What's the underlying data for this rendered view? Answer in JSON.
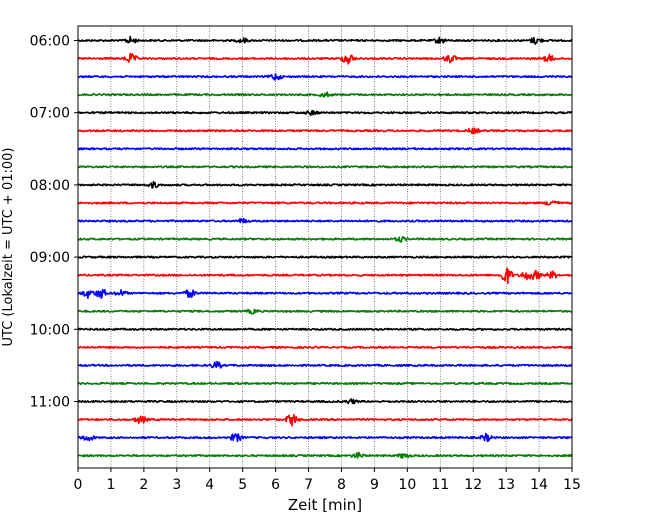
{
  "chart_data": {
    "type": "line",
    "title": "",
    "xlabel": "Zeit  [min]",
    "ylabel": "UTC (Lokalzeit = UTC + 01:00)",
    "xlim": [
      0,
      15
    ],
    "x_ticks": [
      "0",
      "1",
      "2",
      "3",
      "4",
      "5",
      "6",
      "7",
      "8",
      "9",
      "10",
      "11",
      "12",
      "13",
      "14",
      "15"
    ],
    "y_tick_labels": [
      "06:00",
      "07:00",
      "08:00",
      "09:00",
      "10:00",
      "11:00"
    ],
    "y_tick_rows": [
      0,
      4,
      8,
      12,
      16,
      20
    ],
    "grid_x": true,
    "series_colors": [
      "#000000",
      "#ff0000",
      "#0000ff",
      "#008000"
    ],
    "traces": [
      {
        "start": "06:00",
        "events": [
          [
            1.6,
            0.5
          ],
          [
            5.0,
            0.35
          ],
          [
            11.0,
            0.45
          ],
          [
            13.9,
            0.5
          ]
        ]
      },
      {
        "start": "06:15",
        "events": [
          [
            1.6,
            0.7
          ],
          [
            8.2,
            0.9
          ],
          [
            11.3,
            0.6
          ],
          [
            14.3,
            0.5
          ]
        ]
      },
      {
        "start": "06:30",
        "events": [
          [
            6.0,
            0.5
          ]
        ]
      },
      {
        "start": "06:45",
        "events": [
          [
            7.5,
            0.35
          ]
        ]
      },
      {
        "start": "07:00",
        "events": [
          [
            7.1,
            0.3
          ]
        ]
      },
      {
        "start": "07:15",
        "events": [
          [
            12.0,
            0.4
          ]
        ]
      },
      {
        "start": "07:30",
        "events": []
      },
      {
        "start": "07:45",
        "events": []
      },
      {
        "start": "08:00",
        "events": [
          [
            2.3,
            0.4
          ]
        ]
      },
      {
        "start": "08:15",
        "events": [
          [
            14.4,
            0.5
          ]
        ]
      },
      {
        "start": "08:30",
        "events": [
          [
            5.0,
            0.3
          ]
        ]
      },
      {
        "start": "08:45",
        "events": [
          [
            9.8,
            0.35
          ]
        ]
      },
      {
        "start": "09:00",
        "events": []
      },
      {
        "start": "09:15",
        "events": [
          [
            13.0,
            1.3
          ],
          [
            13.6,
            0.6
          ],
          [
            13.9,
            0.6
          ],
          [
            14.4,
            0.5
          ]
        ]
      },
      {
        "start": "09:30",
        "events": [
          [
            0.3,
            0.6
          ],
          [
            0.7,
            0.7
          ],
          [
            1.3,
            0.4
          ],
          [
            3.4,
            0.6
          ]
        ]
      },
      {
        "start": "09:45",
        "events": [
          [
            5.3,
            0.3
          ]
        ]
      },
      {
        "start": "10:00",
        "events": []
      },
      {
        "start": "10:15",
        "events": []
      },
      {
        "start": "10:30",
        "events": [
          [
            4.2,
            0.5
          ]
        ]
      },
      {
        "start": "10:45",
        "events": []
      },
      {
        "start": "11:00",
        "events": [
          [
            8.3,
            0.3
          ]
        ]
      },
      {
        "start": "11:15",
        "events": [
          [
            1.9,
            0.6
          ],
          [
            6.5,
            0.9
          ]
        ]
      },
      {
        "start": "11:30",
        "events": [
          [
            0.3,
            0.5
          ],
          [
            4.8,
            0.6
          ],
          [
            12.4,
            0.5
          ]
        ]
      },
      {
        "start": "11:45",
        "events": [
          [
            8.5,
            0.4
          ],
          [
            9.9,
            0.35
          ]
        ]
      }
    ]
  }
}
